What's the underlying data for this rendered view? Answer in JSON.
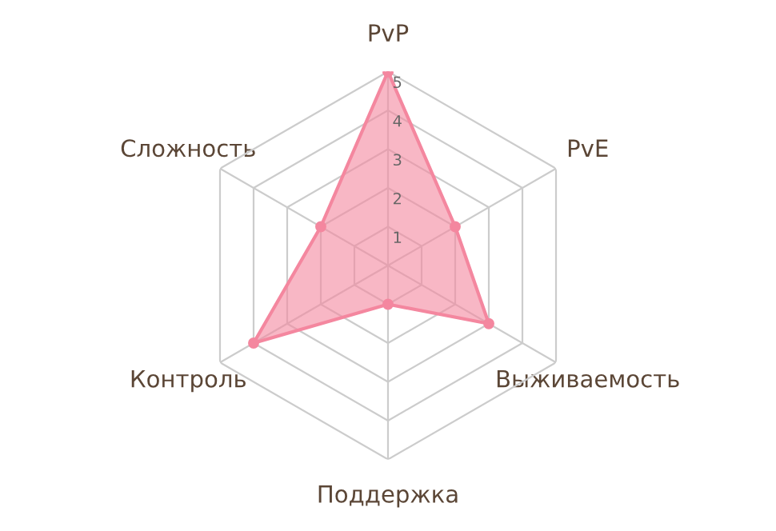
{
  "chart_data": {
    "type": "radar",
    "categories": [
      "PvP",
      "PvE",
      "Выживаемость",
      "Поддержка",
      "Контроль",
      "Сложность"
    ],
    "series": [
      {
        "color": "#f4879f",
        "values": [
          5,
          2,
          3,
          1,
          4,
          2
        ]
      }
    ],
    "ylim": [
      0,
      5
    ],
    "yticks": [
      1,
      2,
      3,
      4,
      5
    ],
    "grid": true,
    "marker": "circle"
  }
}
